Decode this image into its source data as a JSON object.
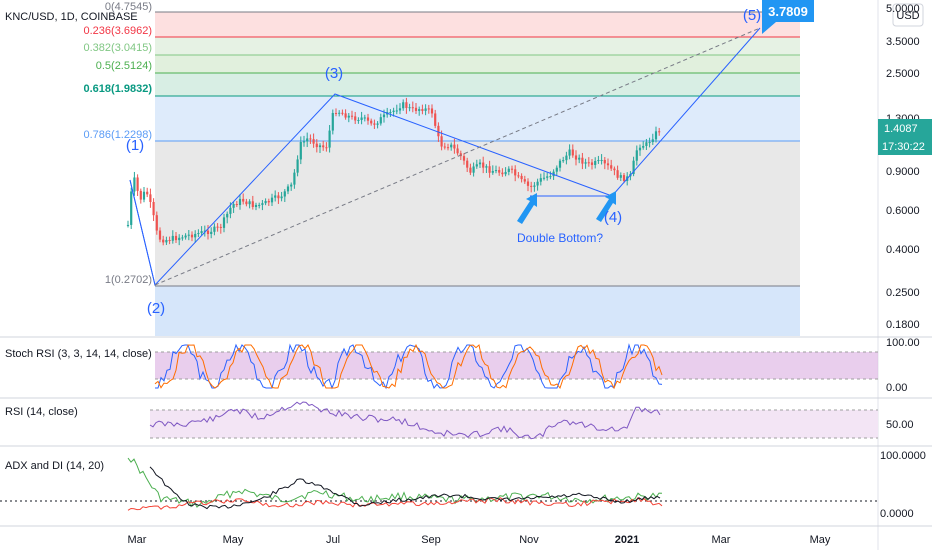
{
  "header": {
    "symbol_title": "KNC/USD, 1D, COINBASE"
  },
  "price_axis": {
    "currency_label": "USD",
    "ticks": [
      "5.0000",
      "3.5000",
      "2.5000",
      "1.3000",
      "0.9000",
      "0.6000",
      "0.4000",
      "0.2500",
      "0.1800"
    ],
    "last_price": "1.4087",
    "countdown": "17:30:22"
  },
  "fib_levels": [
    {
      "label": "0(4.7545)",
      "color": "#787b86"
    },
    {
      "label": "0.236(3.6962)",
      "color": "#f23645"
    },
    {
      "label": "0.382(3.0415)",
      "color": "#81c784"
    },
    {
      "label": "0.5(2.5124)",
      "color": "#4caf50"
    },
    {
      "label": "0.618(1.9832)",
      "color": "#089981"
    },
    {
      "label": "0.786(1.2298)",
      "color": "#5b9cf6"
    },
    {
      "label": "1(0.2702)",
      "color": "#787b86"
    }
  ],
  "annotations": {
    "wave_labels": [
      "(1)",
      "(2)",
      "(3)",
      "(4)",
      "(5)"
    ],
    "target_badge": "3.7809",
    "note": "Double Bottom?"
  },
  "indicators": {
    "stoch": {
      "title": "Stoch RSI (3, 3, 14, 14, close)",
      "ticks": [
        "100.00",
        "0.00"
      ]
    },
    "rsi": {
      "title": "RSI (14, close)",
      "ticks": [
        "50.00"
      ]
    },
    "adx": {
      "title": "ADX and DI (14, 20)",
      "ticks": [
        "100.0000",
        "0.0000"
      ]
    }
  },
  "time_axis": [
    "Mar",
    "May",
    "Jul",
    "Sep",
    "Nov",
    "2021",
    "Mar",
    "May"
  ],
  "colors": {
    "accent": "#2962ff",
    "up": "#26a69a",
    "down": "#ef5350",
    "stoch_k": "#2962ff",
    "stoch_d": "#ff6d00",
    "rsi": "#7e57c2",
    "adx": "#131722",
    "di_plus": "#4caf50",
    "di_minus": "#f44336"
  }
}
